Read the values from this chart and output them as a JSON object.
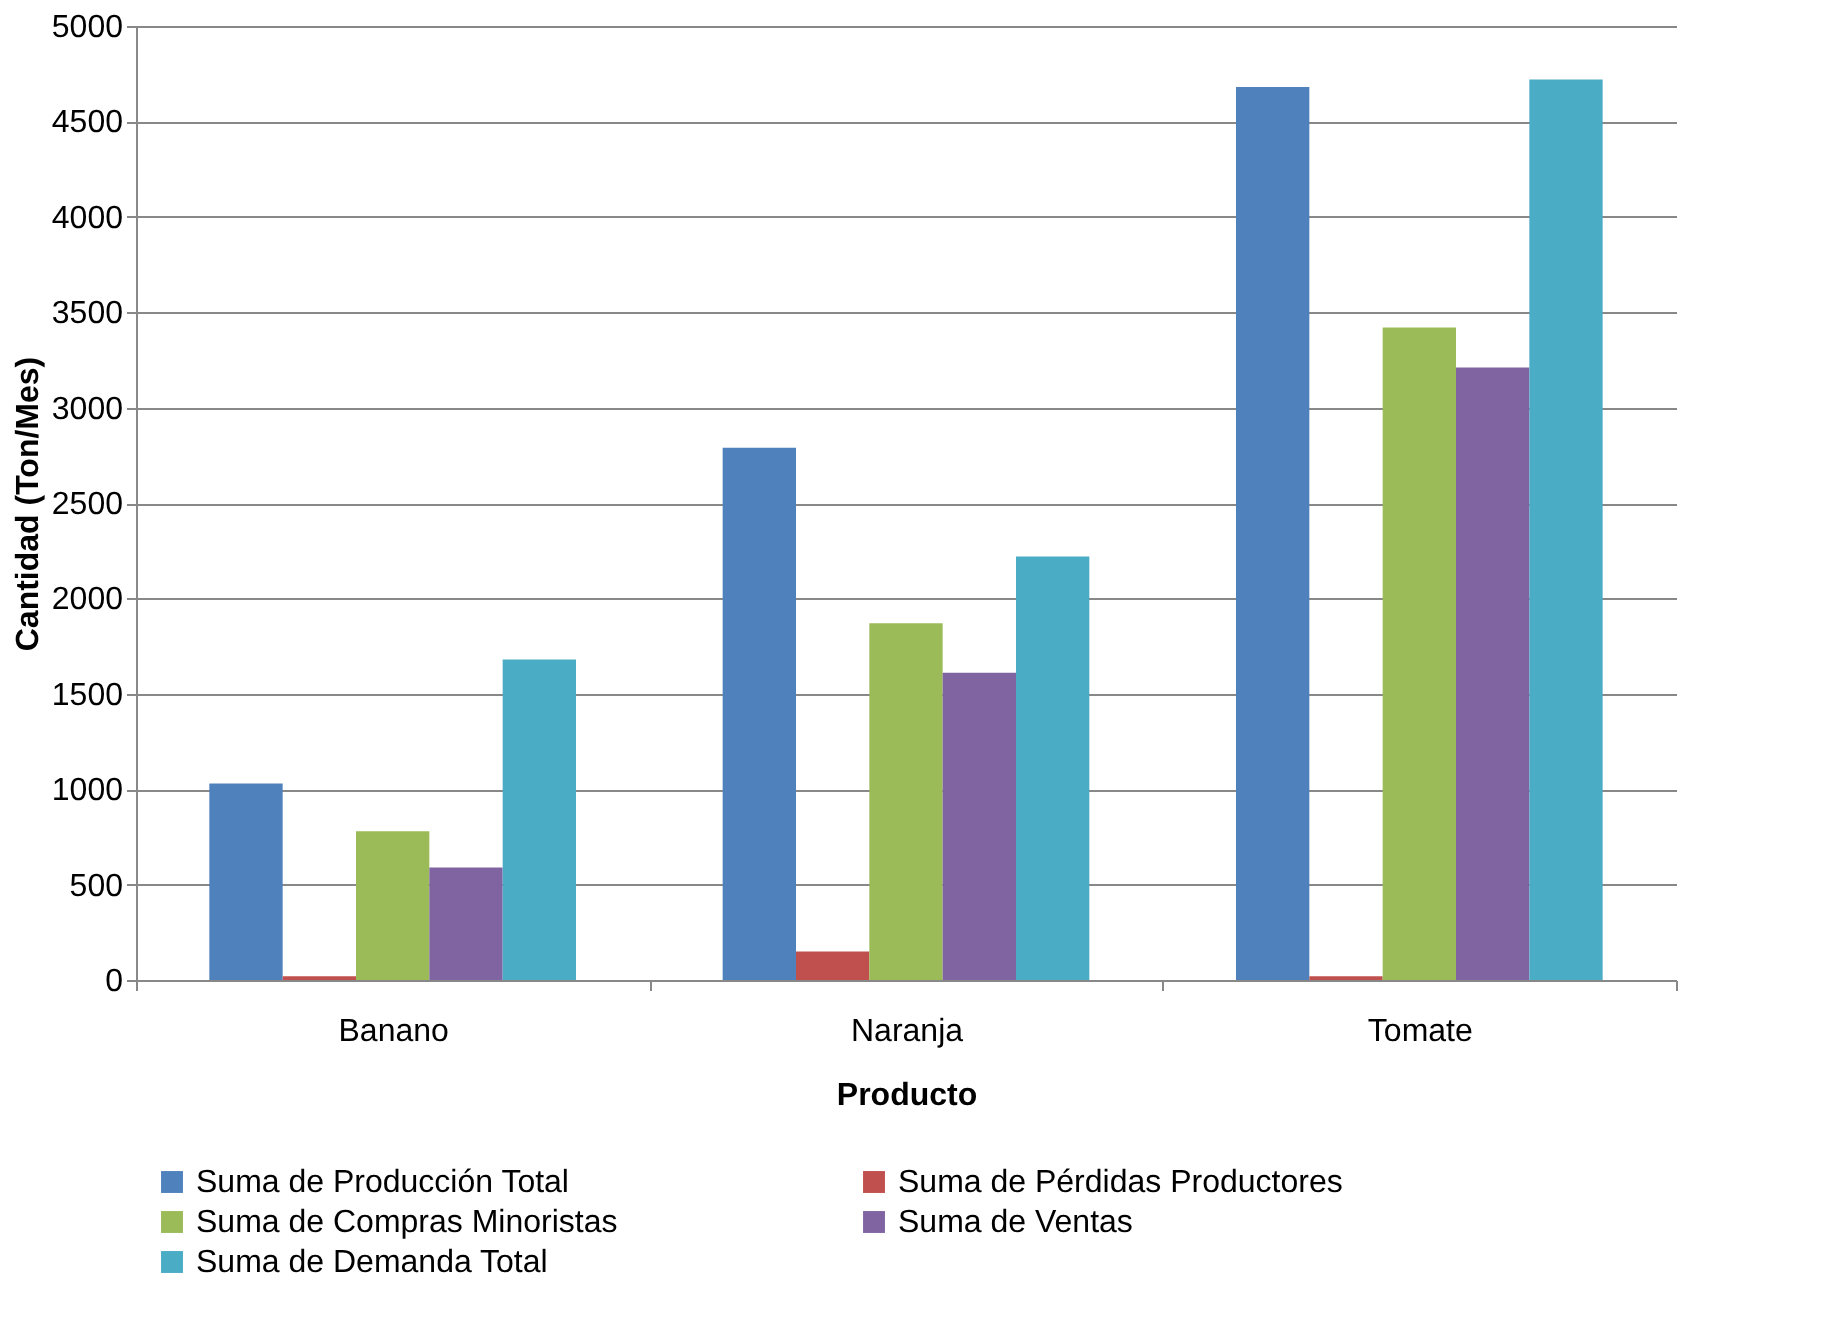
{
  "chart_data": {
    "type": "bar",
    "xlabel": "Producto",
    "ylabel": "Cantidad  (Ton/Mes)",
    "categories": [
      "Banano",
      "Naranja",
      "Tomate"
    ],
    "series": [
      {
        "name": "Suma de Producción Total",
        "color": "#4f81bd",
        "values": [
          1030,
          2790,
          4680
        ]
      },
      {
        "name": "Suma de Pérdidas Productores",
        "color": "#c0504d",
        "values": [
          20,
          150,
          20
        ]
      },
      {
        "name": "Suma de Compras Minoristas",
        "color": "#9bbb59",
        "values": [
          780,
          1870,
          3420
        ]
      },
      {
        "name": "Suma de Ventas",
        "color": "#8064a2",
        "values": [
          590,
          1610,
          3210
        ]
      },
      {
        "name": "Suma de Demanda Total",
        "color": "#4bacc6",
        "values": [
          1680,
          2220,
          4720
        ]
      }
    ],
    "ylim": [
      0,
      5000
    ],
    "yticks": [
      0,
      500,
      1000,
      1500,
      2000,
      2500,
      3000,
      3500,
      4000,
      4500,
      5000
    ],
    "grid": "y",
    "legend": "bottom"
  }
}
